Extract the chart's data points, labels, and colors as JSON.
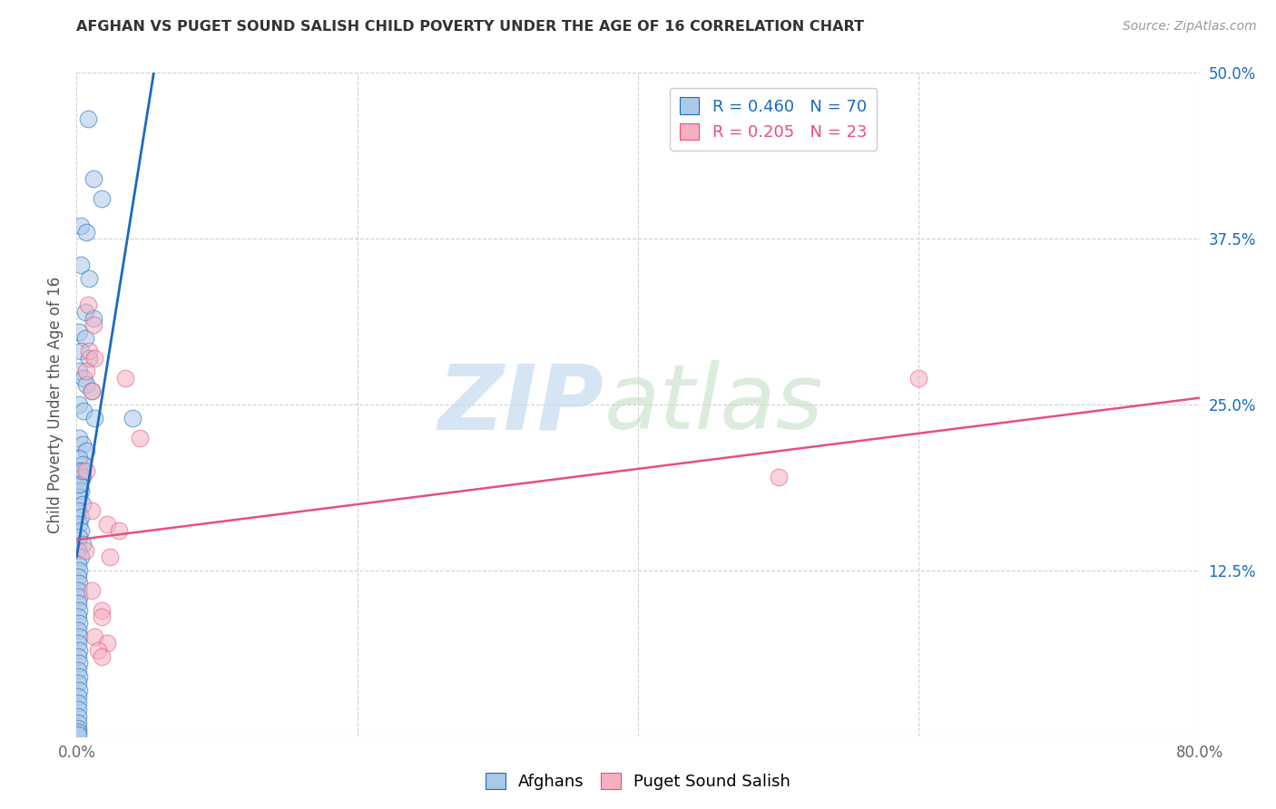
{
  "title": "AFGHAN VS PUGET SOUND SALISH CHILD POVERTY UNDER THE AGE OF 16 CORRELATION CHART",
  "source": "Source: ZipAtlas.com",
  "ylabel": "Child Poverty Under the Age of 16",
  "xlim": [
    0.0,
    0.8
  ],
  "ylim": [
    0.0,
    0.5
  ],
  "xticks": [
    0.0,
    0.2,
    0.4,
    0.6,
    0.8
  ],
  "xticklabels": [
    "0.0%",
    "",
    "",
    "",
    "80.0%"
  ],
  "yticks": [
    0.0,
    0.125,
    0.25,
    0.375,
    0.5
  ],
  "yticklabels": [
    "",
    "12.5%",
    "25.0%",
    "37.5%",
    "50.0%"
  ],
  "background_color": "#ffffff",
  "grid_color": "#d0d0d0",
  "blue_R": 0.46,
  "blue_N": 70,
  "pink_R": 0.205,
  "pink_N": 23,
  "blue_color": "#aac8e8",
  "pink_color": "#f5b0c0",
  "blue_line_color": "#1a6bbf",
  "pink_line_color": "#e8507a",
  "blue_scatter": [
    [
      0.008,
      0.465
    ],
    [
      0.012,
      0.42
    ],
    [
      0.018,
      0.405
    ],
    [
      0.003,
      0.385
    ],
    [
      0.007,
      0.38
    ],
    [
      0.003,
      0.355
    ],
    [
      0.009,
      0.345
    ],
    [
      0.006,
      0.32
    ],
    [
      0.012,
      0.315
    ],
    [
      0.002,
      0.305
    ],
    [
      0.006,
      0.3
    ],
    [
      0.003,
      0.29
    ],
    [
      0.009,
      0.285
    ],
    [
      0.002,
      0.275
    ],
    [
      0.005,
      0.27
    ],
    [
      0.007,
      0.265
    ],
    [
      0.011,
      0.26
    ],
    [
      0.002,
      0.25
    ],
    [
      0.005,
      0.245
    ],
    [
      0.013,
      0.24
    ],
    [
      0.002,
      0.225
    ],
    [
      0.004,
      0.22
    ],
    [
      0.007,
      0.215
    ],
    [
      0.002,
      0.21
    ],
    [
      0.004,
      0.205
    ],
    [
      0.002,
      0.2
    ],
    [
      0.004,
      0.195
    ],
    [
      0.002,
      0.19
    ],
    [
      0.003,
      0.185
    ],
    [
      0.002,
      0.18
    ],
    [
      0.004,
      0.175
    ],
    [
      0.001,
      0.17
    ],
    [
      0.003,
      0.165
    ],
    [
      0.002,
      0.16
    ],
    [
      0.003,
      0.155
    ],
    [
      0.002,
      0.15
    ],
    [
      0.004,
      0.145
    ],
    [
      0.001,
      0.14
    ],
    [
      0.003,
      0.135
    ],
    [
      0.001,
      0.13
    ],
    [
      0.002,
      0.125
    ],
    [
      0.001,
      0.12
    ],
    [
      0.002,
      0.115
    ],
    [
      0.001,
      0.11
    ],
    [
      0.002,
      0.105
    ],
    [
      0.001,
      0.1
    ],
    [
      0.002,
      0.095
    ],
    [
      0.001,
      0.09
    ],
    [
      0.002,
      0.085
    ],
    [
      0.001,
      0.08
    ],
    [
      0.002,
      0.075
    ],
    [
      0.001,
      0.07
    ],
    [
      0.002,
      0.065
    ],
    [
      0.001,
      0.06
    ],
    [
      0.002,
      0.055
    ],
    [
      0.001,
      0.05
    ],
    [
      0.002,
      0.045
    ],
    [
      0.001,
      0.04
    ],
    [
      0.002,
      0.035
    ],
    [
      0.001,
      0.03
    ],
    [
      0.001,
      0.025
    ],
    [
      0.001,
      0.02
    ],
    [
      0.001,
      0.015
    ],
    [
      0.001,
      0.01
    ],
    [
      0.001,
      0.006
    ],
    [
      0.001,
      0.003
    ],
    [
      0.001,
      0.001
    ],
    [
      0.002,
      0.19
    ],
    [
      0.004,
      0.2
    ],
    [
      0.04,
      0.24
    ]
  ],
  "pink_scatter": [
    [
      0.008,
      0.325
    ],
    [
      0.012,
      0.31
    ],
    [
      0.009,
      0.29
    ],
    [
      0.013,
      0.285
    ],
    [
      0.007,
      0.275
    ],
    [
      0.011,
      0.26
    ],
    [
      0.035,
      0.27
    ],
    [
      0.045,
      0.225
    ],
    [
      0.007,
      0.2
    ],
    [
      0.011,
      0.17
    ],
    [
      0.022,
      0.16
    ],
    [
      0.03,
      0.155
    ],
    [
      0.006,
      0.14
    ],
    [
      0.024,
      0.135
    ],
    [
      0.011,
      0.11
    ],
    [
      0.018,
      0.095
    ],
    [
      0.018,
      0.09
    ],
    [
      0.013,
      0.075
    ],
    [
      0.022,
      0.07
    ],
    [
      0.015,
      0.065
    ],
    [
      0.018,
      0.06
    ],
    [
      0.6,
      0.27
    ],
    [
      0.5,
      0.195
    ]
  ],
  "blue_trendline_x": [
    0.0,
    0.055
  ],
  "blue_trendline_y": [
    0.135,
    0.5
  ],
  "pink_trendline_x": [
    0.0,
    0.8
  ],
  "pink_trendline_y": [
    0.148,
    0.255
  ]
}
